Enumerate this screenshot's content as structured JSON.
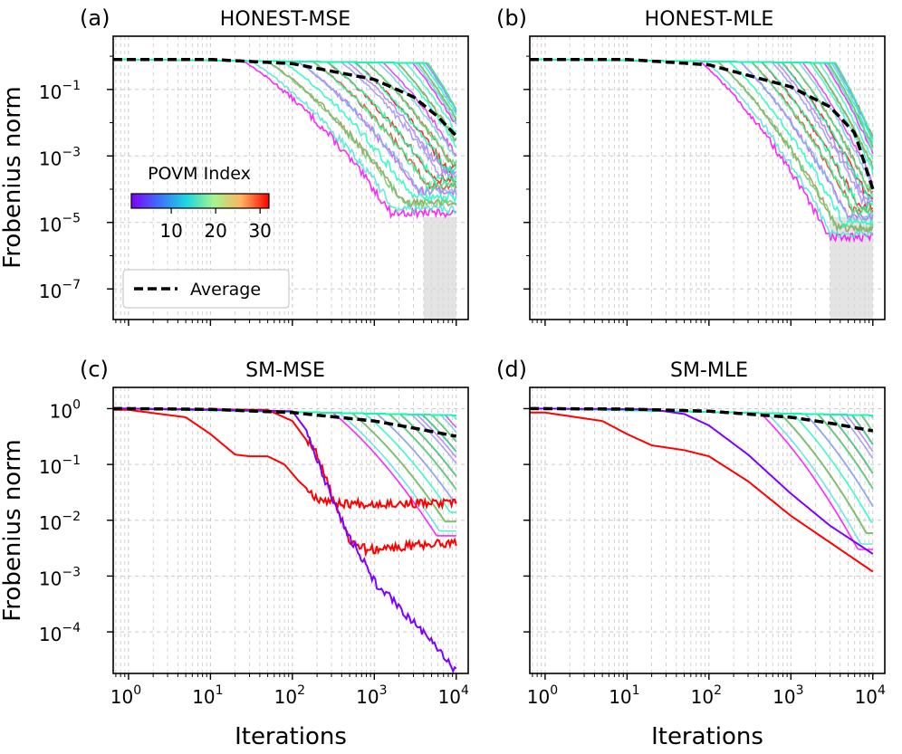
{
  "chart_data": [
    {
      "type": "line",
      "letter": "(a)",
      "title": "HONEST-MSE",
      "xlabel": "",
      "ylabel": "Frobenius norm",
      "xscale": "log",
      "yscale": "log",
      "xlim": [
        0.65,
        14000
      ],
      "ylim": [
        1.2e-08,
        4
      ],
      "xticks": [
        {
          "v": 1,
          "base": "10",
          "exp": "0"
        },
        {
          "v": 10,
          "base": "10",
          "exp": "1"
        },
        {
          "v": 100,
          "base": "10",
          "exp": "2"
        },
        {
          "v": 1000,
          "base": "10",
          "exp": "3"
        },
        {
          "v": 10000,
          "base": "10",
          "exp": "4"
        }
      ],
      "show_xtick_labels": false,
      "yticks": [
        {
          "v": 0.1,
          "base": "10",
          "exp": "−1"
        },
        {
          "v": 0.001,
          "base": "10",
          "exp": "−3"
        },
        {
          "v": 1e-05,
          "base": "10",
          "exp": "−5"
        },
        {
          "v": 1e-07,
          "base": "10",
          "exp": "−7"
        }
      ],
      "show_ytick_labels": true,
      "grid": true,
      "curve_model": {
        "family": "plateau-decay",
        "n_series": 32,
        "start_value": 0.8,
        "knee_range": [
          10,
          4500
        ],
        "final_range": [
          1e-05,
          0.004
        ],
        "noisy": true
      },
      "average": {
        "name": "Average",
        "x": [
          1,
          10,
          100,
          1000,
          3000,
          6000,
          10000
        ],
        "values": [
          0.8,
          0.8,
          0.6,
          0.2,
          0.06,
          0.015,
          0.004
        ]
      },
      "shaded_region": [
        4000,
        10000
      ],
      "legend": {
        "position": "bottom-left",
        "entries": [
          "Average"
        ]
      },
      "colorbar": {
        "title": "POVM Index",
        "ticks": [
          10,
          20,
          30
        ],
        "range": [
          1,
          32
        ],
        "colormap": "rainbow",
        "position": "middle-left"
      }
    },
    {
      "type": "line",
      "letter": "(b)",
      "title": "HONEST-MLE",
      "xlabel": "",
      "ylabel": "",
      "xscale": "log",
      "yscale": "log",
      "xlim": [
        0.65,
        14000
      ],
      "ylim": [
        1.2e-08,
        4
      ],
      "xticks": [
        {
          "v": 1,
          "base": "10",
          "exp": "0"
        },
        {
          "v": 10,
          "base": "10",
          "exp": "1"
        },
        {
          "v": 100,
          "base": "10",
          "exp": "2"
        },
        {
          "v": 1000,
          "base": "10",
          "exp": "3"
        },
        {
          "v": 10000,
          "base": "10",
          "exp": "4"
        }
      ],
      "show_xtick_labels": false,
      "yticks": [
        {
          "v": 0.1,
          "base": "10",
          "exp": "−1"
        },
        {
          "v": 0.001,
          "base": "10",
          "exp": "−3"
        },
        {
          "v": 1e-05,
          "base": "10",
          "exp": "−5"
        },
        {
          "v": 1e-07,
          "base": "10",
          "exp": "−7"
        }
      ],
      "show_ytick_labels": false,
      "grid": true,
      "curve_model": {
        "family": "plateau-decay",
        "n_series": 32,
        "start_value": 0.8,
        "knee_range": [
          40,
          3500
        ],
        "final_range": [
          2e-06,
          0.0005
        ],
        "noisy": true
      },
      "average": {
        "name": "Average",
        "x": [
          1,
          10,
          100,
          1000,
          3000,
          6000,
          10000
        ],
        "values": [
          0.8,
          0.8,
          0.55,
          0.12,
          0.03,
          0.005,
          0.0001
        ]
      },
      "shaded_region": [
        3000,
        10000
      ]
    },
    {
      "type": "line",
      "letter": "(c)",
      "title": "SM-MSE",
      "xlabel": "Iterations",
      "ylabel": "Frobenius norm",
      "xscale": "log",
      "yscale": "log",
      "xlim": [
        0.65,
        14000
      ],
      "ylim": [
        1.8e-05,
        2.4
      ],
      "xticks": [
        {
          "v": 1,
          "base": "10",
          "exp": "0"
        },
        {
          "v": 10,
          "base": "10",
          "exp": "1"
        },
        {
          "v": 100,
          "base": "10",
          "exp": "2"
        },
        {
          "v": 1000,
          "base": "10",
          "exp": "3"
        },
        {
          "v": 10000,
          "base": "10",
          "exp": "4"
        }
      ],
      "show_xtick_labels": true,
      "yticks": [
        {
          "v": 1,
          "base": "10",
          "exp": "0"
        },
        {
          "v": 0.1,
          "base": "10",
          "exp": "−1"
        },
        {
          "v": 0.01,
          "base": "10",
          "exp": "−2"
        },
        {
          "v": 0.001,
          "base": "10",
          "exp": "−3"
        },
        {
          "v": 0.0001,
          "base": "10",
          "exp": "−4"
        }
      ],
      "show_ytick_labels": true,
      "grid": true,
      "curve_model": {
        "family": "slow-decay",
        "n_series": 32,
        "start_value": 1.0,
        "knee_range": [
          150,
          20000
        ],
        "final_range": [
          0.003,
          0.6
        ],
        "noisy": false
      },
      "special_series": [
        {
          "name": "red-plateau-high",
          "x": [
            1,
            5,
            10,
            20,
            30,
            50,
            80,
            120,
            200,
            400,
            1000,
            10000
          ],
          "values": [
            0.95,
            0.7,
            0.35,
            0.15,
            0.14,
            0.14,
            0.1,
            0.05,
            0.025,
            0.02,
            0.02,
            0.02
          ],
          "noisy": true
        },
        {
          "name": "red-plateau-low",
          "x": [
            1,
            50,
            100,
            200,
            300,
            500,
            800,
            10000
          ],
          "values": [
            1.0,
            0.95,
            0.6,
            0.15,
            0.03,
            0.004,
            0.003,
            0.004
          ],
          "noisy": true
        },
        {
          "name": "purple-steep",
          "x": [
            1,
            100,
            150,
            250,
            500,
            1000,
            3000,
            10000
          ],
          "values": [
            1.0,
            0.9,
            0.4,
            0.05,
            0.005,
            0.0008,
            0.00015,
            2e-05
          ],
          "noisy": true
        }
      ],
      "average": {
        "name": "Average",
        "x": [
          1,
          10,
          100,
          1000,
          3000,
          10000
        ],
        "values": [
          1.0,
          0.97,
          0.85,
          0.6,
          0.45,
          0.32
        ]
      }
    },
    {
      "type": "line",
      "letter": "(d)",
      "title": "SM-MLE",
      "xlabel": "Iterations",
      "ylabel": "",
      "xscale": "log",
      "yscale": "log",
      "xlim": [
        0.65,
        14000
      ],
      "ylim": [
        1.8e-05,
        2.4
      ],
      "xticks": [
        {
          "v": 1,
          "base": "10",
          "exp": "0"
        },
        {
          "v": 10,
          "base": "10",
          "exp": "1"
        },
        {
          "v": 100,
          "base": "10",
          "exp": "2"
        },
        {
          "v": 1000,
          "base": "10",
          "exp": "3"
        },
        {
          "v": 10000,
          "base": "10",
          "exp": "4"
        }
      ],
      "show_xtick_labels": true,
      "yticks": [
        {
          "v": 1,
          "base": "10",
          "exp": "0"
        },
        {
          "v": 0.1,
          "base": "10",
          "exp": "−1"
        },
        {
          "v": 0.01,
          "base": "10",
          "exp": "−2"
        },
        {
          "v": 0.001,
          "base": "10",
          "exp": "−3"
        },
        {
          "v": 0.0001,
          "base": "10",
          "exp": "−4"
        }
      ],
      "show_ytick_labels": false,
      "grid": true,
      "curve_model": {
        "family": "slow-decay",
        "n_series": 32,
        "start_value": 1.0,
        "knee_range": [
          200,
          30000
        ],
        "final_range": [
          0.0015,
          0.7
        ],
        "noisy": false
      },
      "special_series": [
        {
          "name": "red-bottom",
          "x": [
            1,
            5,
            10,
            20,
            50,
            100,
            300,
            1000,
            3000,
            10000
          ],
          "values": [
            0.85,
            0.6,
            0.35,
            0.22,
            0.18,
            0.14,
            0.05,
            0.012,
            0.004,
            0.0012
          ],
          "noisy": false
        },
        {
          "name": "purple-bottom",
          "x": [
            1,
            20,
            50,
            100,
            300,
            1000,
            3000,
            10000
          ],
          "values": [
            1.0,
            0.97,
            0.8,
            0.5,
            0.15,
            0.03,
            0.008,
            0.0025
          ],
          "noisy": false
        }
      ],
      "average": {
        "name": "Average",
        "x": [
          1,
          10,
          100,
          1000,
          3000,
          10000
        ],
        "values": [
          1.0,
          0.98,
          0.9,
          0.7,
          0.55,
          0.4
        ]
      }
    }
  ]
}
